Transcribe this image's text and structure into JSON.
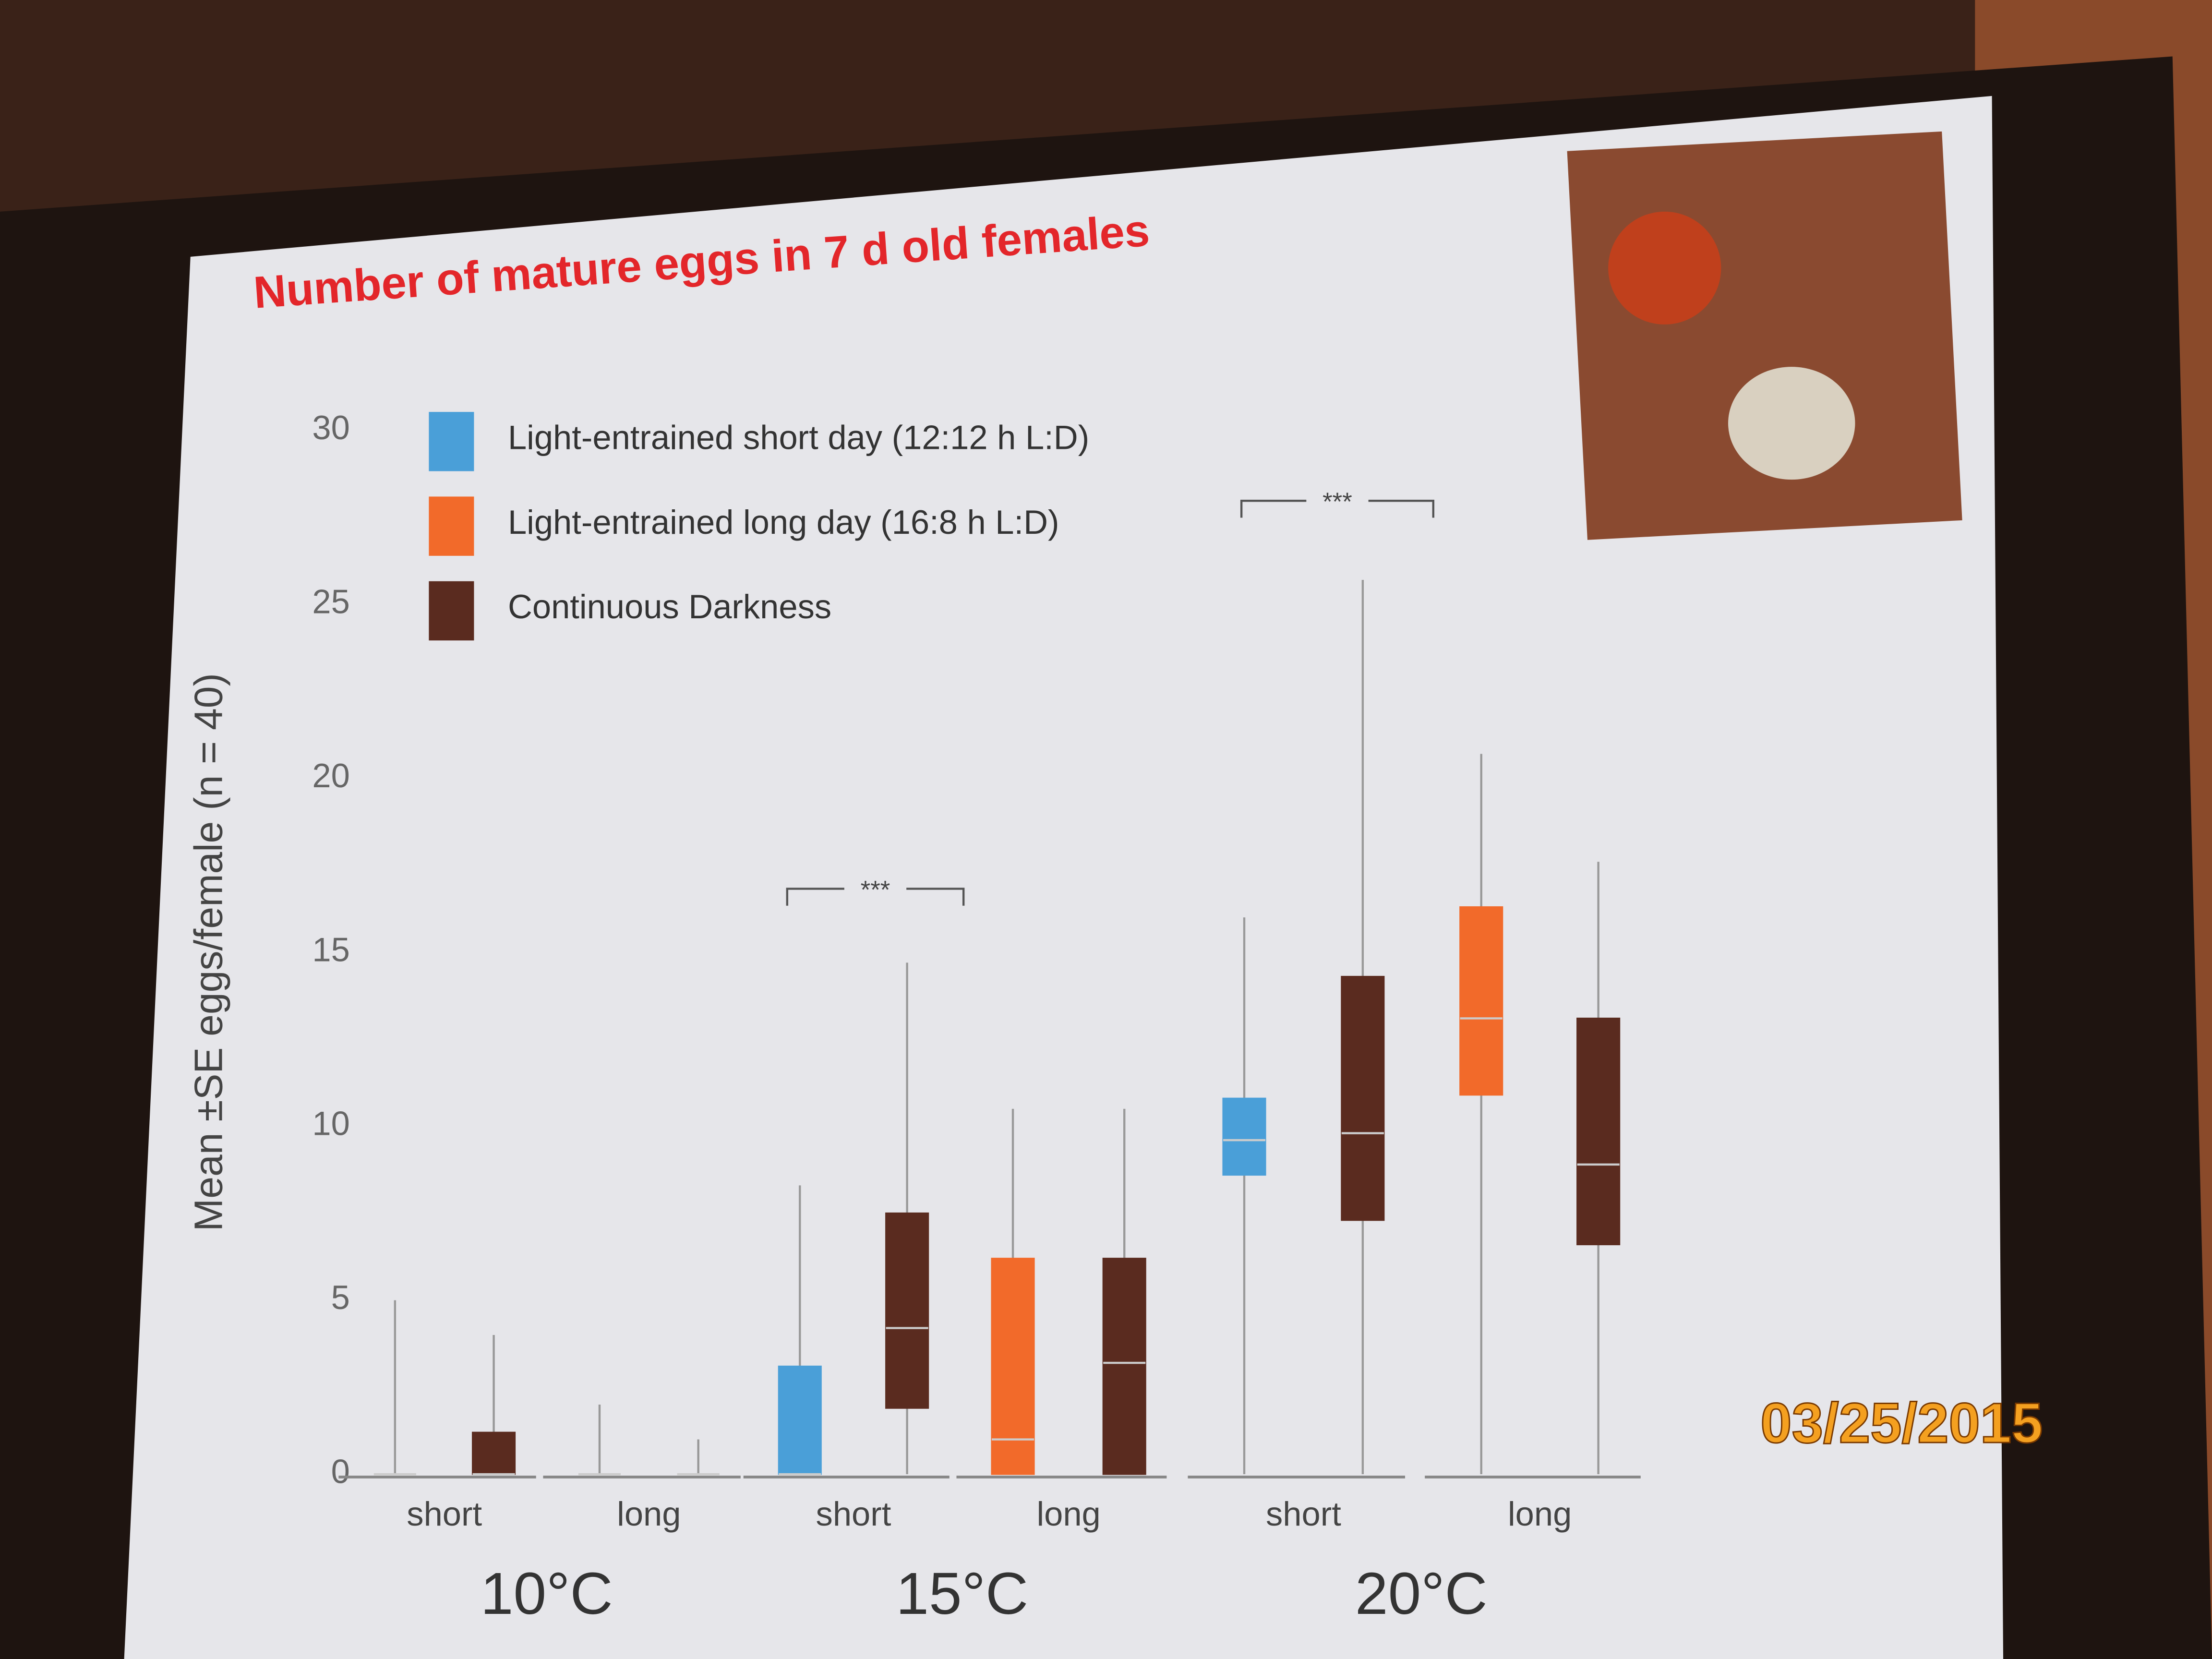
{
  "chart_data": {
    "type": "box",
    "title": "Number of mature eggs in 7 d old females",
    "y_label": "Mean ±SE eggs/female (n = 40)",
    "categories": [
      "short",
      "long",
      "short",
      "long",
      "short",
      "long"
    ],
    "groups": [
      "10°C",
      "15°C",
      "20°C"
    ],
    "ylim": [
      0,
      30
    ],
    "yticks": [
      0,
      5,
      10,
      15,
      20,
      25,
      30
    ],
    "series": [
      {
        "name": "Light-entrained short day (12:12 h L:D)",
        "color": "#4a9fd8",
        "values": [
          {
            "min": 0,
            "q1": 0,
            "median": 0,
            "q3": 0,
            "max": 5
          },
          null,
          {
            "min": 0,
            "q1": 0,
            "median": 0,
            "q3": 3.1,
            "max": 8.3
          },
          null,
          {
            "min": 0,
            "q1": 8.6,
            "median": 9.6,
            "q3": 10.8,
            "max": 16
          },
          null
        ]
      },
      {
        "name": "Light-entrained long day (16:8 h L:D)",
        "color": "#f26a2a",
        "values": [
          null,
          {
            "min": 0,
            "q1": 0,
            "median": 0,
            "q3": 0,
            "max": 2
          },
          null,
          {
            "min": 0,
            "q1": 0,
            "median": 1,
            "q3": 6.2,
            "max": 10.5
          },
          null,
          {
            "min": 0,
            "q1": 10.9,
            "median": 13.1,
            "q3": 16.3,
            "max": 20.7
          }
        ]
      },
      {
        "name": "Continuous Darkness",
        "color": "#5a2b1f",
        "values": [
          {
            "min": 0,
            "q1": 0,
            "median": 0,
            "q3": 1.2,
            "max": 4
          },
          {
            "min": 0,
            "q1": 0,
            "median": 0,
            "q3": 0,
            "max": 1
          },
          {
            "min": 0,
            "q1": 1.9,
            "median": 4.2,
            "q3": 7.5,
            "max": 14.7
          },
          {
            "min": 0,
            "q1": 0,
            "median": 3.2,
            "q3": 6.2,
            "max": 10.5
          },
          {
            "min": 0,
            "q1": 7.3,
            "median": 9.8,
            "q3": 14.3,
            "max": 25.7
          },
          {
            "min": 0,
            "q1": 6.6,
            "median": 8.9,
            "q3": 13.1,
            "max": 17.6
          }
        ]
      }
    ],
    "annotations": [
      "***",
      "***"
    ]
  },
  "photo_stamp": "03/25/2015"
}
